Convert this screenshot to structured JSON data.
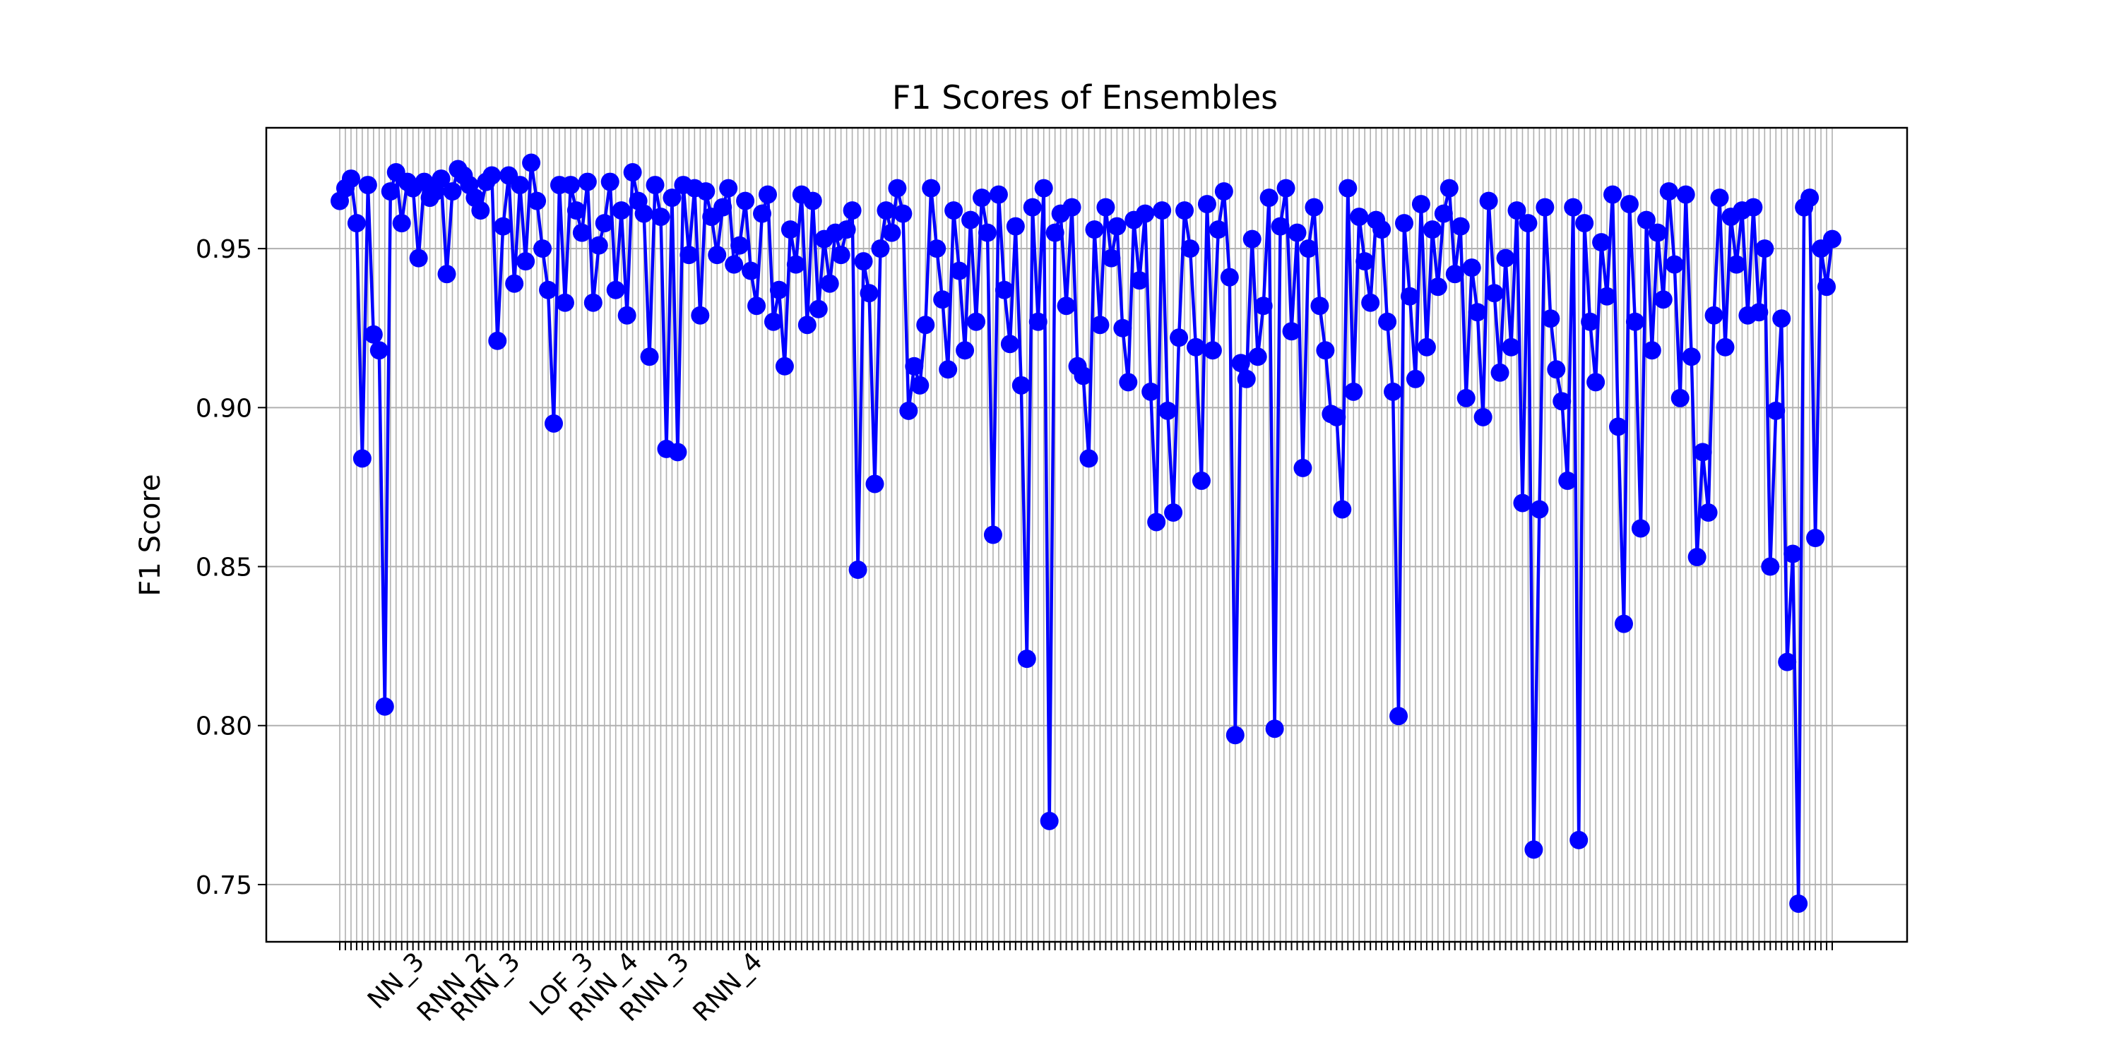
{
  "chart_data": {
    "type": "line",
    "title": "F1 Scores of Ensembles",
    "xlabel": "",
    "ylabel": "F1 Score",
    "ylim": [
      0.732,
      0.988
    ],
    "yticks": [
      0.75,
      0.8,
      0.85,
      0.9,
      0.95
    ],
    "ytick_labels": [
      "0.75",
      "0.80",
      "0.85",
      "0.90",
      "0.95"
    ],
    "grid": true,
    "legend": "none",
    "marker": "circle",
    "color": "#0000ff",
    "x_tick_labels_readable": [
      "NN_3",
      "RNN_2",
      "RNN_3",
      "LOF_3",
      "RNN_4",
      "RNN_3",
      "RNN_4"
    ],
    "values": [
      0.965,
      0.969,
      0.972,
      0.958,
      0.884,
      0.97,
      0.923,
      0.918,
      0.806,
      0.968,
      0.974,
      0.958,
      0.971,
      0.969,
      0.947,
      0.971,
      0.966,
      0.968,
      0.972,
      0.942,
      0.968,
      0.975,
      0.973,
      0.97,
      0.966,
      0.962,
      0.971,
      0.973,
      0.921,
      0.957,
      0.973,
      0.939,
      0.97,
      0.946,
      0.977,
      0.965,
      0.95,
      0.937,
      0.895,
      0.97,
      0.933,
      0.97,
      0.962,
      0.955,
      0.971,
      0.933,
      0.951,
      0.958,
      0.971,
      0.937,
      0.962,
      0.929,
      0.974,
      0.965,
      0.961,
      0.916,
      0.97,
      0.96,
      0.887,
      0.966,
      0.886,
      0.97,
      0.948,
      0.969,
      0.929,
      0.968,
      0.96,
      0.948,
      0.963,
      0.969,
      0.945,
      0.951,
      0.965,
      0.943,
      0.932,
      0.961,
      0.967,
      0.927,
      0.937,
      0.913,
      0.956,
      0.945,
      0.967,
      0.926,
      0.965,
      0.931,
      0.953,
      0.939,
      0.955,
      0.948,
      0.956,
      0.962,
      0.849,
      0.946,
      0.936,
      0.876,
      0.95,
      0.962,
      0.955,
      0.969,
      0.961,
      0.899,
      0.913,
      0.907,
      0.926,
      0.969,
      0.95,
      0.934,
      0.912,
      0.962,
      0.943,
      0.918,
      0.959,
      0.927,
      0.966,
      0.955,
      0.86,
      0.967,
      0.937,
      0.92,
      0.957,
      0.907,
      0.821,
      0.963,
      0.927,
      0.969,
      0.77,
      0.955,
      0.961,
      0.932,
      0.963,
      0.913,
      0.91,
      0.884,
      0.956,
      0.926,
      0.963,
      0.947,
      0.957,
      0.925,
      0.908,
      0.959,
      0.94,
      0.961,
      0.905,
      0.864,
      0.962,
      0.899,
      0.867,
      0.922,
      0.962,
      0.95,
      0.919,
      0.877,
      0.964,
      0.918,
      0.956,
      0.968,
      0.941,
      0.797,
      0.914,
      0.909,
      0.953,
      0.916,
      0.932,
      0.966,
      0.799,
      0.957,
      0.969,
      0.924,
      0.955,
      0.881,
      0.95,
      0.963,
      0.932,
      0.918,
      0.898,
      0.897,
      0.868,
      0.969,
      0.905,
      0.96,
      0.946,
      0.933,
      0.959,
      0.956,
      0.927,
      0.905,
      0.803,
      0.958,
      0.935,
      0.909,
      0.964,
      0.919,
      0.956,
      0.938,
      0.961,
      0.969,
      0.942,
      0.957,
      0.903,
      0.944,
      0.93,
      0.897,
      0.965,
      0.936,
      0.911,
      0.947,
      0.919,
      0.962,
      0.87,
      0.958,
      0.761,
      0.868,
      0.963,
      0.928,
      0.912,
      0.902,
      0.877,
      0.963,
      0.764,
      0.958,
      0.927,
      0.908,
      0.952,
      0.935,
      0.967,
      0.894,
      0.832,
      0.964,
      0.927,
      0.862,
      0.959,
      0.918,
      0.955,
      0.934,
      0.968,
      0.945,
      0.903,
      0.967,
      0.916,
      0.853,
      0.886,
      0.867,
      0.929,
      0.966,
      0.919,
      0.96,
      0.945,
      0.962,
      0.929,
      0.963,
      0.93,
      0.95,
      0.85,
      0.899,
      0.928,
      0.82,
      0.854,
      0.744,
      0.963,
      0.966,
      0.859,
      0.95,
      0.938,
      0.953
    ]
  }
}
